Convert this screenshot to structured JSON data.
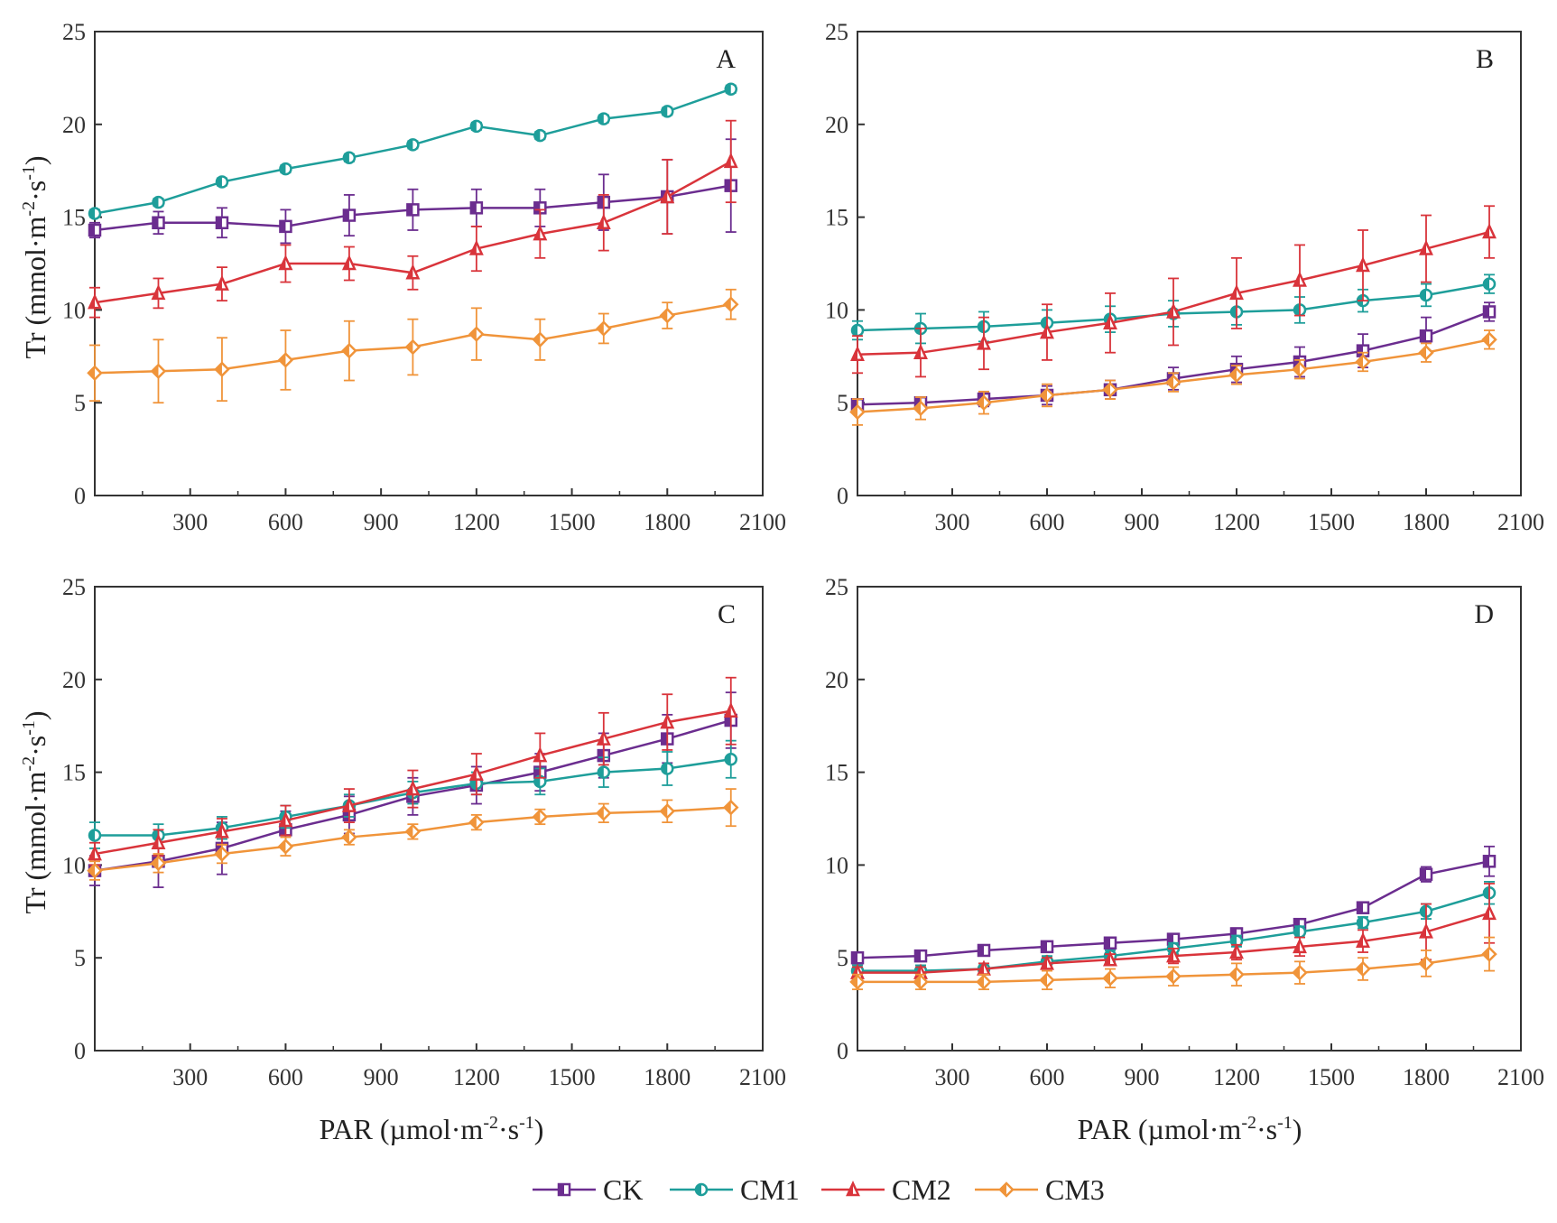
{
  "figure": {
    "y_label_main": "Tr (mmol·m",
    "y_label_sup1": "-2",
    "y_label_mid": "·s",
    "y_label_sup2": "-1",
    "y_label_end": ")",
    "x_label_main": "PAR (µmol·m",
    "x_label_sup1": "-2",
    "x_label_mid": "·s",
    "x_label_sup2": "-1",
    "x_label_end": ")"
  },
  "legend": [
    {
      "name": "CK",
      "color": "#6b2d8f",
      "marker": "square"
    },
    {
      "name": "CM1",
      "color": "#1e9e9a",
      "marker": "circle"
    },
    {
      "name": "CM2",
      "color": "#d9343b",
      "marker": "triangle"
    },
    {
      "name": "CM3",
      "color": "#f0943a",
      "marker": "diamond"
    }
  ],
  "chart_data": [
    {
      "type": "line",
      "panel_label": "A",
      "x": [
        0,
        200,
        400,
        600,
        800,
        1000,
        1200,
        1400,
        1600,
        1800,
        2000
      ],
      "xlim": [
        0,
        2100
      ],
      "ylim": [
        0,
        25
      ],
      "xticks": [
        "300",
        "600",
        "900",
        "1200",
        "1500",
        "1800",
        "2100"
      ],
      "yticks": [
        "0",
        "5",
        "10",
        "15",
        "20",
        "25"
      ],
      "series": [
        {
          "name": "CK",
          "values": [
            14.3,
            14.7,
            14.7,
            14.5,
            15.1,
            15.4,
            15.5,
            15.5,
            15.8,
            16.1,
            16.7
          ],
          "errors": [
            0.4,
            0.6,
            0.8,
            0.9,
            1.1,
            1.1,
            1.0,
            1.0,
            1.5,
            2.0,
            2.5
          ]
        },
        {
          "name": "CM1",
          "values": [
            15.2,
            15.8,
            16.9,
            17.6,
            18.2,
            18.9,
            19.9,
            19.4,
            20.3,
            20.7,
            21.9
          ],
          "errors": [
            0.2,
            0.2,
            0.2,
            0.2,
            0.2,
            0.2,
            0.2,
            0.2,
            0.2,
            0.2,
            0.2
          ]
        },
        {
          "name": "CM2",
          "values": [
            10.4,
            10.9,
            11.4,
            12.5,
            12.5,
            12.0,
            13.3,
            14.1,
            14.7,
            16.1,
            18.0
          ],
          "errors": [
            0.8,
            0.8,
            0.9,
            1.0,
            0.9,
            0.9,
            1.2,
            1.3,
            1.5,
            2.0,
            2.2
          ]
        },
        {
          "name": "CM3",
          "values": [
            6.6,
            6.7,
            6.8,
            7.3,
            7.8,
            8.0,
            8.7,
            8.4,
            9.0,
            9.7,
            10.3
          ],
          "errors": [
            1.5,
            1.7,
            1.7,
            1.6,
            1.6,
            1.5,
            1.4,
            1.1,
            0.8,
            0.7,
            0.8
          ]
        }
      ]
    },
    {
      "type": "line",
      "panel_label": "B",
      "x": [
        0,
        200,
        400,
        600,
        800,
        1000,
        1200,
        1400,
        1600,
        1800,
        2000
      ],
      "xlim": [
        0,
        2100
      ],
      "ylim": [
        0,
        25
      ],
      "xticks": [
        "300",
        "600",
        "900",
        "1200",
        "1500",
        "1800",
        "2100"
      ],
      "yticks": [
        "0",
        "5",
        "10",
        "15",
        "20",
        "25"
      ],
      "series": [
        {
          "name": "CK",
          "values": [
            4.9,
            5.0,
            5.2,
            5.4,
            5.7,
            6.3,
            6.8,
            7.2,
            7.8,
            8.6,
            9.9
          ],
          "errors": [
            0.3,
            0.3,
            0.4,
            0.5,
            0.5,
            0.6,
            0.7,
            0.8,
            0.9,
            1.0,
            0.5
          ]
        },
        {
          "name": "CM1",
          "values": [
            8.9,
            9.0,
            9.1,
            9.3,
            9.5,
            9.8,
            9.9,
            10.0,
            10.5,
            10.8,
            11.4
          ],
          "errors": [
            0.5,
            0.8,
            0.8,
            0.7,
            0.7,
            0.7,
            0.7,
            0.7,
            0.6,
            0.6,
            0.5
          ]
        },
        {
          "name": "CM2",
          "values": [
            7.6,
            7.7,
            8.2,
            8.8,
            9.3,
            9.9,
            10.9,
            11.6,
            12.4,
            13.3,
            14.2
          ],
          "errors": [
            1.0,
            1.3,
            1.4,
            1.5,
            1.6,
            1.8,
            1.9,
            1.9,
            1.9,
            1.8,
            1.4
          ]
        },
        {
          "name": "CM3",
          "values": [
            4.5,
            4.7,
            5.0,
            5.4,
            5.7,
            6.1,
            6.5,
            6.8,
            7.2,
            7.7,
            8.4
          ],
          "errors": [
            0.7,
            0.6,
            0.6,
            0.6,
            0.5,
            0.5,
            0.5,
            0.5,
            0.5,
            0.5,
            0.5
          ]
        }
      ]
    },
    {
      "type": "line",
      "panel_label": "C",
      "x": [
        0,
        200,
        400,
        600,
        800,
        1000,
        1200,
        1400,
        1600,
        1800,
        2000
      ],
      "xlim": [
        0,
        2100
      ],
      "ylim": [
        0,
        25
      ],
      "xticks": [
        "300",
        "600",
        "900",
        "1200",
        "1500",
        "1800",
        "2100"
      ],
      "yticks": [
        "0",
        "5",
        "10",
        "15",
        "20",
        "25"
      ],
      "series": [
        {
          "name": "CK",
          "values": [
            9.7,
            10.2,
            10.9,
            11.9,
            12.7,
            13.7,
            14.3,
            15.0,
            15.9,
            16.8,
            17.8
          ],
          "errors": [
            0.8,
            1.4,
            1.4,
            1.0,
            1.0,
            1.0,
            1.0,
            1.0,
            1.2,
            1.3,
            1.5
          ]
        },
        {
          "name": "CM1",
          "values": [
            11.6,
            11.6,
            12.0,
            12.6,
            13.2,
            13.9,
            14.4,
            14.5,
            15.0,
            15.2,
            15.7
          ],
          "errors": [
            0.7,
            0.6,
            0.6,
            0.6,
            0.6,
            0.6,
            0.6,
            0.7,
            0.8,
            0.9,
            1.0
          ]
        },
        {
          "name": "CM2",
          "values": [
            10.6,
            11.2,
            11.8,
            12.4,
            13.2,
            14.1,
            14.9,
            15.9,
            16.8,
            17.7,
            18.3
          ],
          "errors": [
            0.6,
            0.7,
            0.7,
            0.8,
            0.9,
            1.0,
            1.1,
            1.2,
            1.4,
            1.5,
            1.8
          ]
        },
        {
          "name": "CM3",
          "values": [
            9.7,
            10.1,
            10.6,
            11.0,
            11.5,
            11.8,
            12.3,
            12.6,
            12.8,
            12.9,
            13.1
          ],
          "errors": [
            0.5,
            0.5,
            0.5,
            0.5,
            0.4,
            0.4,
            0.4,
            0.4,
            0.5,
            0.6,
            1.0
          ]
        }
      ]
    },
    {
      "type": "line",
      "panel_label": "D",
      "x": [
        0,
        200,
        400,
        600,
        800,
        1000,
        1200,
        1400,
        1600,
        1800,
        2000
      ],
      "xlim": [
        0,
        2100
      ],
      "ylim": [
        0,
        25
      ],
      "xticks": [
        "300",
        "600",
        "900",
        "1200",
        "1500",
        "1800",
        "2100"
      ],
      "yticks": [
        "0",
        "5",
        "10",
        "15",
        "20",
        "25"
      ],
      "series": [
        {
          "name": "CK",
          "values": [
            5.0,
            5.1,
            5.4,
            5.6,
            5.8,
            6.0,
            6.3,
            6.8,
            7.7,
            9.5,
            10.2
          ],
          "errors": [
            0.2,
            0.2,
            0.2,
            0.2,
            0.2,
            0.3,
            0.3,
            0.3,
            0.3,
            0.4,
            0.8
          ]
        },
        {
          "name": "CM1",
          "values": [
            4.3,
            4.3,
            4.4,
            4.8,
            5.1,
            5.5,
            5.9,
            6.4,
            6.9,
            7.5,
            8.5
          ],
          "errors": [
            0.3,
            0.3,
            0.3,
            0.3,
            0.3,
            0.3,
            0.3,
            0.3,
            0.3,
            0.4,
            0.6
          ]
        },
        {
          "name": "CM2",
          "values": [
            4.2,
            4.2,
            4.4,
            4.7,
            4.9,
            5.1,
            5.3,
            5.6,
            5.9,
            6.4,
            7.4
          ],
          "errors": [
            0.3,
            0.3,
            0.3,
            0.3,
            0.3,
            0.4,
            0.4,
            0.5,
            0.6,
            1.5,
            1.6
          ]
        },
        {
          "name": "CM3",
          "values": [
            3.7,
            3.7,
            3.7,
            3.8,
            3.9,
            4.0,
            4.1,
            4.2,
            4.4,
            4.7,
            5.2
          ],
          "errors": [
            0.4,
            0.4,
            0.4,
            0.5,
            0.5,
            0.5,
            0.6,
            0.6,
            0.6,
            0.7,
            0.9
          ]
        }
      ]
    }
  ]
}
